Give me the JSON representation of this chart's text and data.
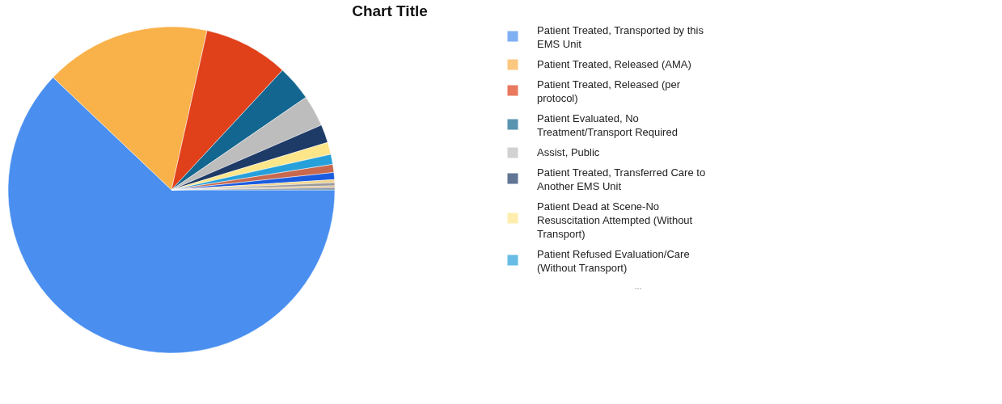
{
  "chart_data": {
    "type": "pie",
    "title": "Chart Title",
    "categories": [
      "Patient Treated, Transported by this EMS Unit",
      "Patient Treated, Released (AMA)",
      "Patient Treated, Released (per protocol)",
      "Patient Evaluated, No Treatment/Transport Required",
      "Assist, Public",
      "Patient Treated, Transferred Care to Another EMS Unit",
      "Patient Dead at Scene-No Resuscitation Attempted (Without Transport)",
      "Patient Refused Evaluation/Care (Without Transport)",
      null,
      null,
      null,
      null,
      null,
      null
    ],
    "values": [
      62.1,
      16.4,
      8.4,
      3.5,
      3.1,
      1.8,
      1.2,
      1.0,
      0.8,
      0.7,
      0.3,
      0.3,
      0.2,
      0.2
    ],
    "colors": [
      "#4a8ff0",
      "#f9b14a",
      "#e0401a",
      "#13668f",
      "#bdbdbd",
      "#1e3a66",
      "#fde68a",
      "#26a0da",
      "#c8684e",
      "#1a5ce0",
      "#f2d48a",
      "#9a9a9a",
      "#d6b48a",
      "#7a8fa0"
    ],
    "legend": "right",
    "annotations": [
      "..."
    ]
  }
}
